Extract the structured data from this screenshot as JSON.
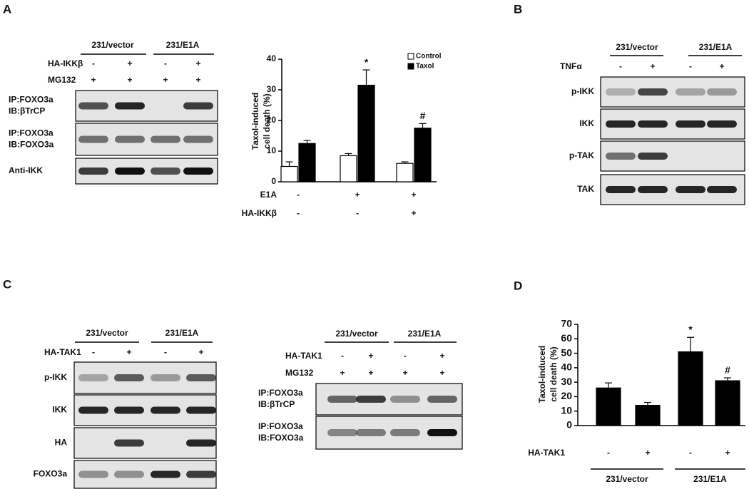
{
  "panels": [
    "A",
    "B",
    "C",
    "D"
  ],
  "blots": [
    {
      "groups": [
        "231/vector",
        "231/E1A"
      ],
      "conditions": [
        {
          "name": "HA-IKKβ",
          "signs": [
            "-",
            "+",
            "-",
            "+"
          ]
        },
        {
          "name": "MG132",
          "signs": [
            "+",
            "+",
            "+",
            "+"
          ]
        }
      ],
      "rows": [
        [
          "IP:FOXO3a",
          "IB:βTrCP"
        ],
        [
          "IP:FOXO3a",
          "IB:FOXO3a"
        ],
        [
          "Anti-IKK"
        ]
      ]
    },
    {
      "groups": [
        "231/vector",
        "231/E1A"
      ],
      "conditions": [
        {
          "name": "TNFα",
          "signs": [
            "-",
            "+",
            "-",
            "+"
          ]
        }
      ],
      "rows": [
        [
          "p-IKK"
        ],
        [
          "IKK"
        ],
        [
          "p-TAK"
        ],
        [
          "TAK"
        ]
      ]
    },
    {
      "groups": [
        "231/vector",
        "231/E1A"
      ],
      "conditions": [
        {
          "name": "HA-TAK1",
          "signs": [
            "-",
            "+",
            "-",
            "+"
          ]
        }
      ],
      "rows": [
        [
          "p-IKK"
        ],
        [
          "IKK"
        ],
        [
          "HA"
        ],
        [
          "FOXO3a"
        ]
      ]
    },
    {
      "groups": [
        "231/vector",
        "231/E1A"
      ],
      "conditions": [
        {
          "name": "HA-TAK1",
          "signs": [
            "-",
            "+",
            "-",
            "+"
          ]
        },
        {
          "name": "MG132",
          "signs": [
            "+",
            "+",
            "+",
            "+"
          ]
        }
      ],
      "rows": [
        [
          "IP:FOXO3a",
          "IB:βTrCP"
        ],
        [
          "IP:FOXO3a",
          "IB:FOXO3a"
        ]
      ]
    }
  ],
  "chart_data": [
    {
      "type": "bar",
      "ylabel": [
        "Taxol-induced",
        "cell death (%)"
      ],
      "categories": [
        null,
        null,
        null
      ],
      "conditions": [
        {
          "name": "E1A",
          "signs": [
            "-",
            "+",
            "+"
          ]
        },
        {
          "name": "HA-IKKβ",
          "signs": [
            "-",
            "-",
            "+"
          ]
        }
      ],
      "series": [
        {
          "name": "Control",
          "color": "#ffffff",
          "values": [
            5,
            8.5,
            6
          ],
          "errors": [
            1.5,
            0.7,
            0.5
          ],
          "markers": [
            null,
            null,
            null
          ]
        },
        {
          "name": "Taxol",
          "color": "#000000",
          "values": [
            12.5,
            31.5,
            17.5
          ],
          "errors": [
            1,
            5,
            1.5
          ],
          "markers": [
            null,
            "*",
            "#"
          ]
        }
      ],
      "ylim": [
        0,
        40
      ],
      "yticks": [
        0,
        10,
        20,
        30,
        40
      ],
      "legend": "upper right"
    },
    {
      "type": "bar",
      "ylabel": [
        "Taxol-induced",
        "cell death (%)"
      ],
      "categories": [
        null,
        null,
        null,
        null
      ],
      "conditions": [
        {
          "name": "HA-TAK1",
          "signs": [
            "-",
            "+",
            "-",
            "+"
          ]
        }
      ],
      "groups": [
        "231/vector",
        "231/E1A"
      ],
      "series": [
        {
          "name": null,
          "color": "#000000",
          "values": [
            26,
            14,
            51,
            31
          ],
          "errors": [
            3.5,
            2,
            10,
            2
          ],
          "markers": [
            null,
            null,
            "*",
            "#"
          ]
        }
      ],
      "ylim": [
        0,
        70
      ],
      "yticks": [
        0,
        10,
        20,
        30,
        40,
        50,
        60,
        70
      ]
    }
  ]
}
